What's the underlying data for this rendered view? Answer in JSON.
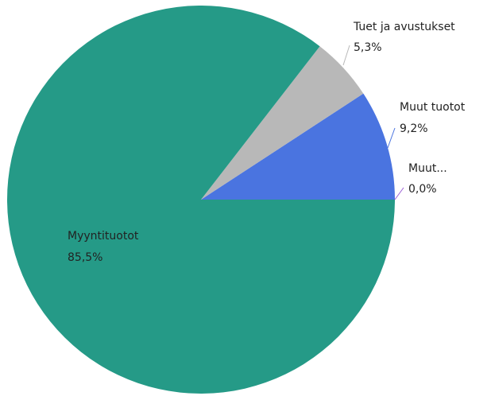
{
  "chart_data": {
    "type": "pie",
    "categories": [
      "Muut...",
      "Muut tuotot",
      "Tuet ja avustukset",
      "Myyntituotot"
    ],
    "values": [
      0.0,
      9.2,
      5.3,
      85.5
    ],
    "value_labels": [
      "0,0%",
      "9,2%",
      "5,3%",
      "85,5%"
    ],
    "colors": [
      "#9b5fd6",
      "#4a74e0",
      "#b8b8b8",
      "#259a87"
    ]
  }
}
